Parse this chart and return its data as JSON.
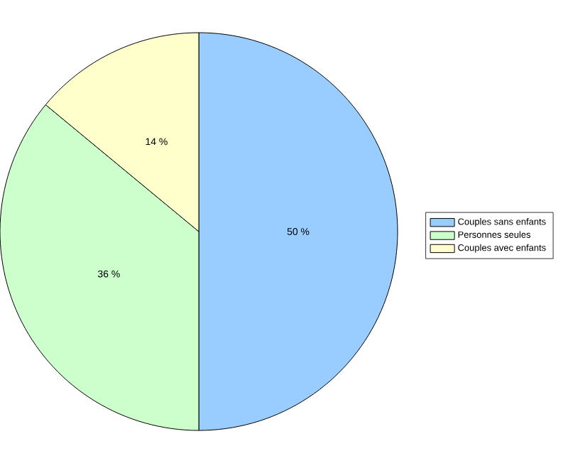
{
  "chart_data": {
    "type": "pie",
    "categories": [
      "Couples sans enfants",
      "Personnes seules",
      "Couples avec enfants"
    ],
    "values": [
      50,
      36,
      14
    ],
    "value_labels": [
      "50 %",
      "36 %",
      "14 %"
    ],
    "colors": [
      "#99ccff",
      "#ccffcc",
      "#ffffcc"
    ],
    "legend": "right"
  }
}
